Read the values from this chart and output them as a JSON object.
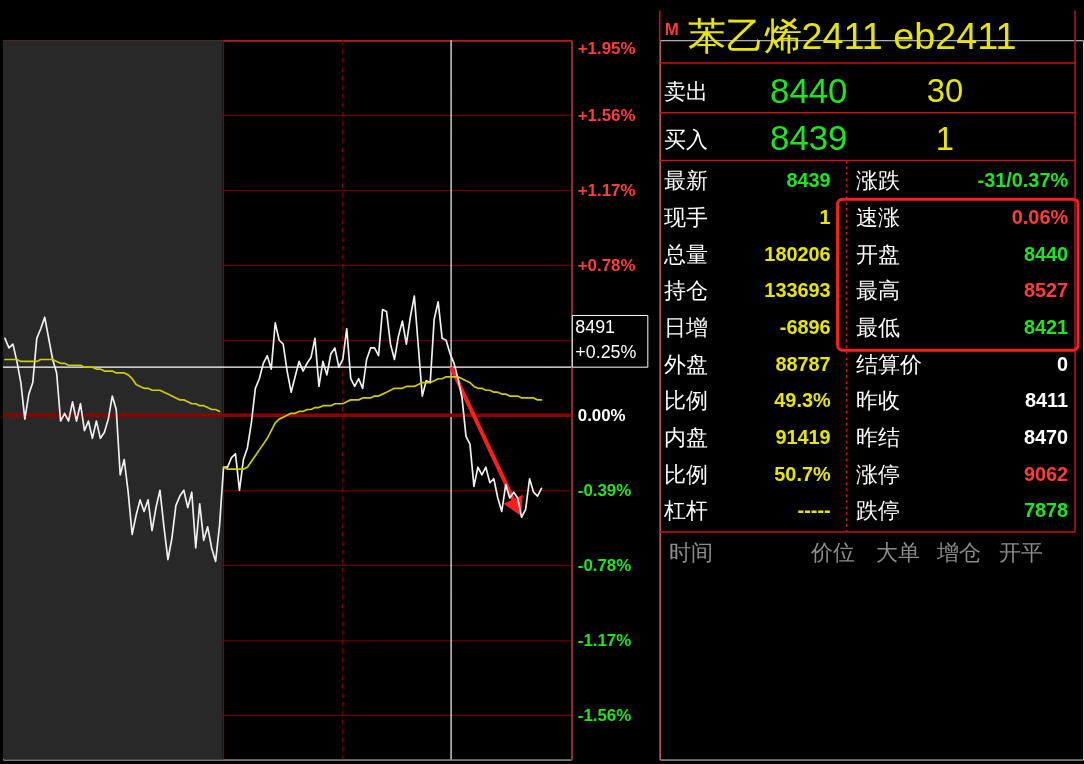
{
  "chart_data": [
    {
      "type": "line",
      "categories": [
        null,
        null,
        null,
        null,
        null,
        null,
        null,
        null,
        null,
        null,
        null,
        null,
        null,
        null,
        null,
        null,
        null,
        null,
        null,
        null,
        null,
        null,
        null,
        null,
        null,
        null,
        null,
        null,
        null,
        null,
        null,
        null,
        null,
        null,
        null,
        null,
        null,
        null,
        null,
        null,
        null,
        null,
        null,
        null,
        null,
        null,
        null,
        null,
        null,
        null,
        null,
        null,
        null,
        null,
        null,
        null,
        null,
        null,
        null,
        null,
        null,
        null,
        null,
        null,
        null,
        null,
        null,
        null,
        null,
        null,
        null,
        null,
        null,
        null,
        null,
        null,
        null,
        null,
        null,
        null,
        null,
        null,
        null,
        null,
        null,
        null,
        null,
        null,
        null,
        null,
        null,
        null,
        null,
        null,
        null,
        null,
        null,
        null,
        null,
        null,
        null,
        null,
        null,
        null,
        null,
        null,
        null,
        null,
        null,
        null,
        null,
        null,
        null,
        null,
        null,
        null,
        null,
        null,
        null,
        null,
        null,
        null,
        null,
        null,
        null,
        null,
        null,
        null,
        null,
        null,
        null,
        null,
        null,
        null,
        null,
        null,
        null,
        null,
        null,
        null,
        null,
        null,
        null
      ],
      "series": [
        {
          "color": "#f0f0f0",
          "values": [
            0.4,
            0.35,
            0.37,
            0.28,
            0.17,
            -0.02,
            0.11,
            0.17,
            0.4,
            0.45,
            0.51,
            0.4,
            0.29,
            0.22,
            -0.03,
            0.01,
            -0.03,
            0.07,
            -0.03,
            0.06,
            -0.08,
            -0.03,
            -0.12,
            -0.03,
            -0.12,
            -0.09,
            -0.02,
            0.1,
            0.03,
            -0.31,
            -0.23,
            -0.4,
            -0.62,
            -0.52,
            -0.44,
            -0.5,
            -0.44,
            -0.6,
            -0.48,
            -0.39,
            -0.58,
            -0.75,
            -0.64,
            -0.47,
            -0.42,
            -0.39,
            -0.48,
            -0.4,
            -0.69,
            -0.46,
            -0.65,
            -0.58,
            -0.69,
            -0.76,
            -0.57,
            -0.27,
            -0.27,
            -0.22,
            -0.2,
            -0.39,
            -0.23,
            -0.17,
            -0.04,
            0.14,
            0.19,
            0.27,
            0.31,
            0.24,
            0.48,
            0.39,
            0.37,
            0.23,
            0.12,
            0.2,
            0.28,
            0.23,
            0.27,
            0.3,
            0.4,
            0.15,
            0.28,
            0.21,
            0.32,
            0.35,
            0.25,
            0.29,
            0.45,
            0.19,
            0.15,
            0.19,
            0.14,
            0.29,
            0.35,
            0.35,
            0.31,
            0.55,
            0.54,
            0.37,
            0.29,
            0.41,
            0.49,
            0.37,
            0.51,
            0.62,
            0.36,
            0.1,
            0.18,
            0.17,
            0.5,
            0.59,
            0.4,
            0.39,
            0.32,
            0.27,
            0.19,
            0.09,
            -0.11,
            -0.15,
            -0.37,
            -0.27,
            -0.31,
            -0.27,
            -0.35,
            -0.33,
            -0.43,
            -0.5,
            -0.36,
            -0.43,
            -0.4,
            -0.43,
            -0.53,
            -0.49,
            -0.33,
            -0.4,
            -0.42,
            -0.38,
            null,
            null,
            null,
            null,
            null,
            null,
            null
          ]
        },
        {
          "color": "#cccc00",
          "values": [
            0.29,
            0.29,
            0.29,
            0.29,
            0.28,
            0.28,
            0.28,
            0.28,
            0.28,
            0.29,
            0.29,
            0.29,
            0.29,
            0.28,
            0.27,
            0.27,
            0.26,
            0.26,
            0.26,
            0.26,
            0.25,
            0.25,
            0.25,
            0.24,
            0.24,
            0.23,
            0.23,
            0.23,
            0.22,
            0.22,
            0.22,
            0.21,
            0.19,
            0.16,
            0.15,
            0.14,
            0.14,
            0.13,
            0.13,
            0.13,
            0.12,
            0.11,
            0.1,
            0.09,
            0.08,
            0.08,
            0.07,
            0.06,
            0.06,
            0.05,
            0.05,
            0.04,
            0.03,
            0.03,
            0.02,
            null,
            null,
            null,
            null,
            null,
            null,
            null,
            null,
            null,
            null,
            null,
            null,
            null,
            null,
            null,
            null,
            null,
            null,
            null,
            null,
            null,
            null,
            null,
            null,
            null,
            null,
            null,
            null,
            null,
            null,
            null,
            null,
            null,
            null,
            null,
            null,
            null,
            null,
            null,
            null,
            null,
            null,
            null,
            null,
            null,
            null,
            null,
            null,
            null,
            null,
            null,
            null,
            null,
            null,
            null,
            null,
            null,
            null,
            null,
            null,
            null,
            null,
            null,
            null,
            null,
            null,
            null,
            null,
            null,
            null,
            null,
            null,
            null,
            null,
            null,
            null,
            null,
            null,
            null,
            null,
            null,
            null,
            null,
            null,
            null,
            null,
            null,
            null
          ]
        },
        {
          "color": "#cccc00",
          "values": [
            null,
            null,
            null,
            null,
            null,
            null,
            null,
            null,
            null,
            null,
            null,
            null,
            null,
            null,
            null,
            null,
            null,
            null,
            null,
            null,
            null,
            null,
            null,
            null,
            null,
            null,
            null,
            null,
            null,
            null,
            null,
            null,
            null,
            null,
            null,
            null,
            null,
            null,
            null,
            null,
            null,
            null,
            null,
            null,
            null,
            null,
            null,
            null,
            null,
            null,
            null,
            null,
            null,
            null,
            null,
            -0.27,
            -0.28,
            -0.28,
            -0.28,
            -0.28,
            -0.28,
            -0.27,
            -0.24,
            -0.21,
            -0.18,
            -0.15,
            -0.12,
            -0.08,
            -0.04,
            -0.02,
            -0.01,
            0.0,
            0.01,
            0.01,
            0.02,
            0.02,
            0.03,
            0.03,
            0.04,
            0.04,
            0.05,
            0.05,
            0.05,
            0.06,
            0.06,
            0.06,
            0.07,
            0.08,
            0.08,
            0.08,
            0.09,
            0.09,
            0.09,
            0.1,
            0.1,
            0.11,
            0.12,
            0.13,
            0.14,
            0.14,
            0.14,
            0.15,
            0.15,
            0.15,
            0.16,
            0.17,
            0.17,
            0.17,
            0.18,
            0.19,
            0.19,
            0.2,
            0.2,
            0.2,
            0.2,
            0.19,
            0.18,
            0.17,
            0.15,
            0.14,
            0.14,
            0.13,
            0.13,
            0.12,
            0.12,
            0.11,
            0.11,
            0.1,
            0.1,
            0.1,
            0.09,
            0.09,
            0.09,
            0.09,
            0.08,
            0.08,
            null,
            null,
            null,
            null,
            null,
            null,
            null
          ]
        }
      ],
      "ylim": [
        -1.79,
        1.95
      ],
      "yticks": [
        {
          "value": 1.95,
          "label": "+1.95%"
        },
        {
          "value": 1.56,
          "label": "+1.56%"
        },
        {
          "value": 1.17,
          "label": "+1.17%"
        },
        {
          "value": 0.78,
          "label": "+0.78%"
        },
        {
          "value": 0.39,
          "label": null
        },
        {
          "value": 0,
          "label": "0.00%"
        },
        {
          "value": -0.39,
          "label": "-0.39%"
        },
        {
          "value": -0.78,
          "label": "-0.78%"
        },
        {
          "value": -1.17,
          "label": "-1.17%"
        },
        {
          "value": -1.56,
          "label": "-1.56%"
        }
      ],
      "grid": "y",
      "tick_labels": "y",
      "ref_lines": [
        {
          "axis": "y",
          "value": 0,
          "color": "#8b0000"
        },
        {
          "axis": "y",
          "value": 0.25,
          "label": "8491\n+0.25%",
          "color": "#ffffff"
        }
      ]
    },
    {
      "type": "other",
      "title": "苯乙烯2411 eb2411",
      "annotations": [
        "M",
        "卖出",
        "8440",
        "30",
        "买入",
        "8439",
        "1",
        "最新",
        "8439",
        "涨跌",
        "-31/0.37%",
        "现手",
        "1",
        "速涨",
        "0.06%",
        "总量",
        "180206",
        "开盘",
        "8440",
        "持仓",
        "133693",
        "最高",
        "8527",
        "日增",
        "-6896",
        "最低",
        "8421",
        "外盘",
        "88787",
        "结算价",
        "0",
        "比例",
        "49.3%",
        "昨收",
        "8411",
        "内盘",
        "91419",
        "昨结",
        "8470",
        "比例",
        "50.7%",
        "涨停",
        "9062",
        "杠杆",
        "-----",
        "跌停",
        "7878",
        "时间",
        "价位",
        "大单",
        "增仓",
        "开平"
      ]
    }
  ]
}
